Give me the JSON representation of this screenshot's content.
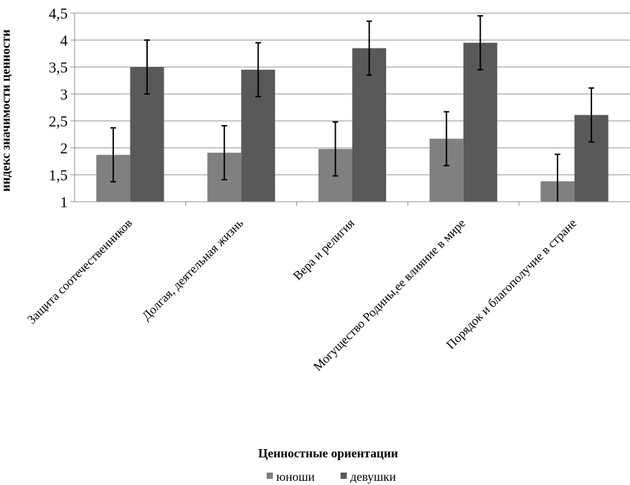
{
  "chart_data": {
    "type": "bar",
    "title": "",
    "xlabel": "Ценностные ориентации",
    "ylabel": "индекс значимости ценности",
    "ylim": [
      1,
      4.5
    ],
    "yticks": [
      "1",
      "1,5",
      "2",
      "2,5",
      "3",
      "3,5",
      "4",
      "4,5"
    ],
    "categories": [
      "Защита соотечественников",
      "Долгая, деятельная жизнь",
      "Вера и религия",
      "Могущество Родины,ее влияние в мире",
      "Порядок и благополучие в стране"
    ],
    "series": [
      {
        "name": "юноши",
        "color": "#808080",
        "values": [
          1.87,
          1.91,
          1.98,
          2.17,
          1.38
        ],
        "error": [
          0.5,
          0.5,
          0.5,
          0.5,
          0.5
        ]
      },
      {
        "name": "девушки",
        "color": "#595959",
        "values": [
          3.5,
          3.45,
          3.85,
          3.95,
          2.61
        ],
        "error": [
          0.5,
          0.5,
          0.5,
          0.5,
          0.5
        ]
      }
    ],
    "grid": true,
    "legend": "bottom"
  }
}
